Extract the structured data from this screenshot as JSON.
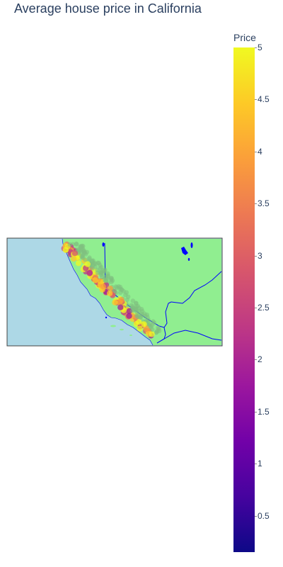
{
  "title": "Average house price in California",
  "colorbar": {
    "title": "Price",
    "ticks": [
      "5",
      "4.5",
      "4",
      "3.5",
      "3",
      "2.5",
      "2",
      "1.5",
      "1",
      "0.5"
    ],
    "tick_values": [
      5,
      4.5,
      4,
      3.5,
      3,
      2.5,
      2,
      1.5,
      1,
      0.5
    ],
    "range": [
      0.15,
      5.0
    ],
    "colorscale": [
      "#0d0887",
      "#46039f",
      "#7201a8",
      "#9c179e",
      "#bd3786",
      "#d8576b",
      "#ed7953",
      "#fb9f3a",
      "#fdca26",
      "#f0f921"
    ]
  },
  "map": {
    "ocean_color": "#add8e6",
    "land_color": "#90ee90",
    "border_color": "#0000ff",
    "frame_color": "#444444"
  }
}
